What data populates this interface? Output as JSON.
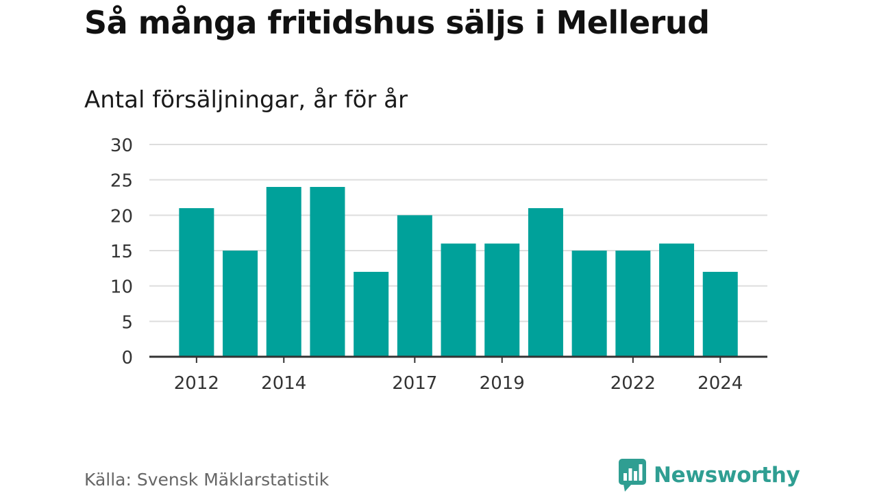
{
  "header": {
    "title": "Så många fritidshus säljs i Mellerud",
    "subtitle": "Antal försäljningar, år för år"
  },
  "footer": {
    "source": "Källa: Svensk Mäklarstatistik",
    "brand": "Newsworthy"
  },
  "colors": {
    "bar": "#00a19a",
    "grid": "#dddddd",
    "axis": "#333333",
    "brand": "#2f9e92"
  },
  "chart_data": {
    "type": "bar",
    "x": [
      2012,
      2013,
      2014,
      2015,
      2016,
      2017,
      2018,
      2019,
      2020,
      2021,
      2022,
      2023,
      2024
    ],
    "values": [
      21,
      15,
      24,
      24,
      12,
      20,
      16,
      16,
      21,
      15,
      15,
      16,
      12
    ],
    "title": "Så många fritidshus säljs i Mellerud",
    "subtitle": "Antal försäljningar, år för år",
    "xlabel": "",
    "ylabel": "",
    "ylim": [
      0,
      30
    ],
    "yticks": [
      0,
      5,
      10,
      15,
      20,
      25,
      30
    ],
    "xtick_labels": [
      2012,
      2014,
      2017,
      2019,
      2022,
      2024
    ],
    "grid": true,
    "legend": "none"
  }
}
